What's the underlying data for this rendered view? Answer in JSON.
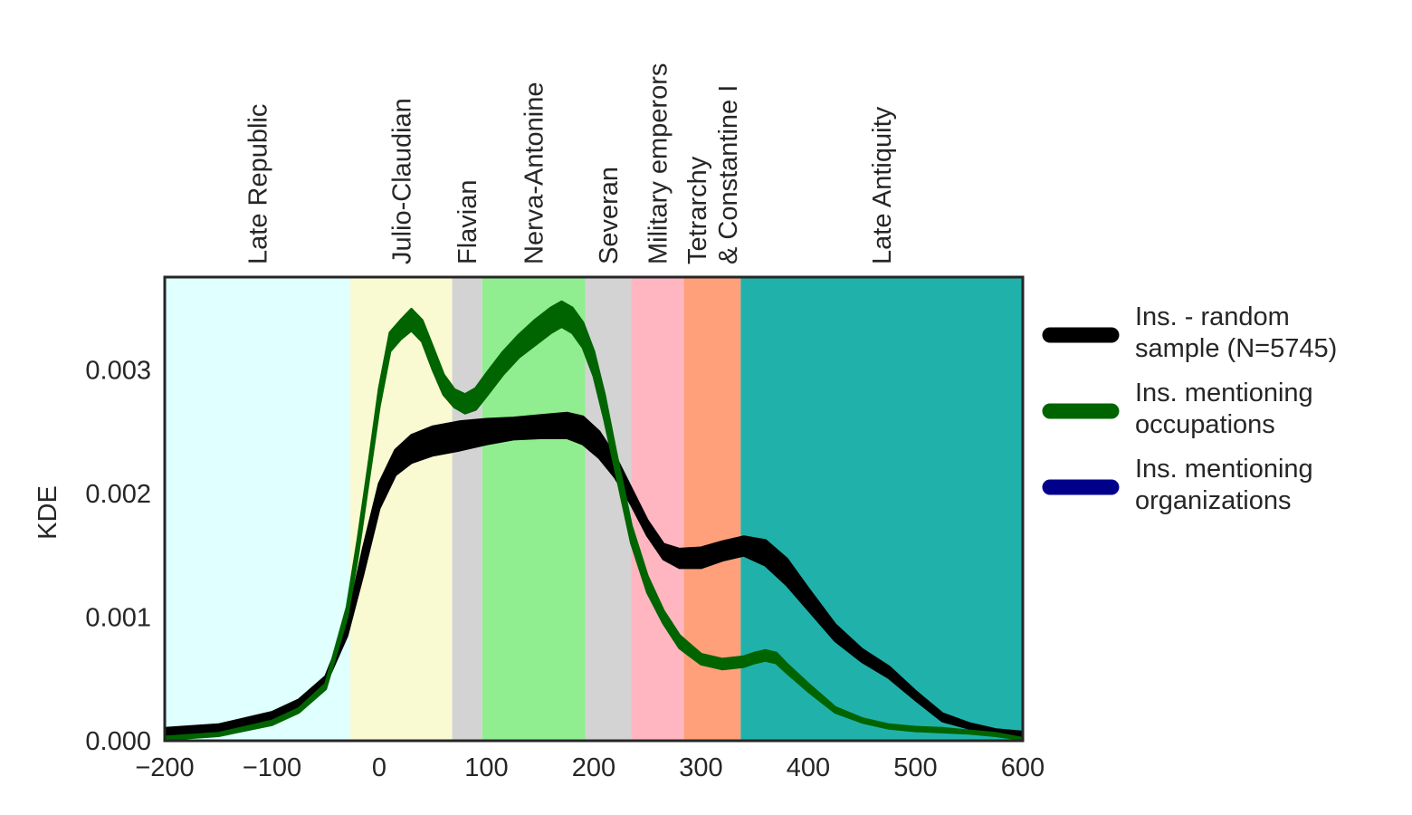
{
  "chart_data": {
    "type": "area",
    "xlabel": "",
    "ylabel": "KDE",
    "xlim": [
      -200,
      600
    ],
    "ylim": [
      0,
      0.00375
    ],
    "x_ticks": [
      -200,
      -100,
      0,
      100,
      200,
      300,
      400,
      500,
      600
    ],
    "x_tick_labels": [
      "−200",
      "−100",
      "0",
      "100",
      "200",
      "300",
      "400",
      "500",
      "600"
    ],
    "y_ticks": [
      0,
      0.001,
      0.002,
      0.003
    ],
    "y_tick_labels": [
      "0.000",
      "0.001",
      "0.002",
      "0.003"
    ],
    "grid": false,
    "legend_position": "right",
    "periods": [
      {
        "name": "Late Republic",
        "lines": [
          "Late Republic"
        ],
        "start": -200,
        "end": -27,
        "color": "#e0ffff"
      },
      {
        "name": "Julio-Claudian",
        "lines": [
          "Julio-Claudian"
        ],
        "start": -27,
        "end": 68,
        "color": "#fafad2"
      },
      {
        "name": "Flavian",
        "lines": [
          "Flavian"
        ],
        "start": 68,
        "end": 96,
        "color": "#d3d3d3"
      },
      {
        "name": "Nerva-Antonine",
        "lines": [
          "Nerva-Antonine"
        ],
        "start": 96,
        "end": 192,
        "color": "#90ee90"
      },
      {
        "name": "Severan",
        "lines": [
          "Severan"
        ],
        "start": 192,
        "end": 235,
        "color": "#d3d3d3"
      },
      {
        "name": "Military emperors",
        "lines": [
          "Military emperors"
        ],
        "start": 235,
        "end": 284,
        "color": "#ffb6c1"
      },
      {
        "name": "Tetrarchy & Constantine I",
        "lines": [
          "Tetrarchy",
          "& Constantine I"
        ],
        "start": 284,
        "end": 337,
        "color": "#ffa07a"
      },
      {
        "name": "Late Antiquity",
        "lines": [
          "Late Antiquity"
        ],
        "start": 337,
        "end": 600,
        "color": "#20b2aa"
      }
    ],
    "series": [
      {
        "name": "Ins. - random sample (N=5745)",
        "legend_lines": [
          "Ins. - random",
          "sample (N=5745)"
        ],
        "color": "#000000",
        "x": [
          -200,
          -150,
          -100,
          -75,
          -50,
          -30,
          -15,
          0,
          15,
          30,
          50,
          75,
          100,
          125,
          150,
          175,
          190,
          205,
          220,
          235,
          250,
          265,
          280,
          300,
          320,
          340,
          360,
          380,
          400,
          425,
          450,
          475,
          500,
          525,
          550,
          575,
          600
        ],
        "lower": [
          5e-05,
          7e-05,
          0.00017,
          0.00027,
          0.00046,
          0.00085,
          0.00135,
          0.00188,
          0.00215,
          0.00225,
          0.00231,
          0.00235,
          0.0024,
          0.00244,
          0.00245,
          0.00245,
          0.0024,
          0.00229,
          0.00213,
          0.00191,
          0.00166,
          0.00147,
          0.0014,
          0.0014,
          0.00146,
          0.0015,
          0.00142,
          0.00126,
          0.00106,
          0.00081,
          0.00064,
          0.00051,
          0.00033,
          0.00016,
          0.0001,
          6e-05,
          4e-05
        ],
        "upper": [
          0.0001,
          0.00013,
          0.00023,
          0.00033,
          0.00052,
          0.00095,
          0.00155,
          0.00208,
          0.00235,
          0.00247,
          0.00254,
          0.00258,
          0.0026,
          0.00261,
          0.00263,
          0.00265,
          0.00262,
          0.0025,
          0.0023,
          0.00204,
          0.00178,
          0.00159,
          0.00155,
          0.00156,
          0.00161,
          0.00165,
          0.00162,
          0.00147,
          0.00123,
          0.00094,
          0.00074,
          0.0006,
          0.0004,
          0.00022,
          0.00014,
          9e-05,
          7e-05
        ]
      },
      {
        "name": "Ins. mentioning occupations",
        "legend_lines": [
          "Ins. mentioning",
          "occupations"
        ],
        "color": "#006400",
        "x": [
          -200,
          -150,
          -100,
          -75,
          -50,
          -30,
          -20,
          -10,
          0,
          10,
          20,
          30,
          40,
          50,
          60,
          70,
          80,
          90,
          100,
          115,
          130,
          145,
          160,
          170,
          180,
          190,
          200,
          210,
          220,
          235,
          250,
          265,
          280,
          300,
          320,
          340,
          350,
          360,
          370,
          380,
          400,
          425,
          450,
          475,
          500,
          525,
          550,
          575,
          600
        ],
        "lower": [
          1e-05,
          4e-05,
          0.00013,
          0.00023,
          0.00042,
          0.001,
          0.0015,
          0.0021,
          0.0027,
          0.00315,
          0.00325,
          0.00332,
          0.00323,
          0.003,
          0.0028,
          0.0027,
          0.00265,
          0.00268,
          0.00279,
          0.00296,
          0.0031,
          0.0032,
          0.0033,
          0.00335,
          0.0033,
          0.00318,
          0.00295,
          0.0026,
          0.0022,
          0.0016,
          0.0012,
          0.00095,
          0.00075,
          0.00062,
          0.00058,
          0.0006,
          0.00063,
          0.00065,
          0.00063,
          0.00055,
          0.0004,
          0.00023,
          0.00015,
          0.0001,
          8e-05,
          7e-05,
          6e-05,
          4e-05,
          1e-05
        ],
        "upper": [
          3e-05,
          6e-05,
          0.00016,
          0.00026,
          0.00046,
          0.00108,
          0.00162,
          0.00222,
          0.00285,
          0.0033,
          0.0034,
          0.00349,
          0.0034,
          0.00318,
          0.00296,
          0.00284,
          0.0028,
          0.00285,
          0.00297,
          0.00314,
          0.00328,
          0.0034,
          0.0035,
          0.00355,
          0.0035,
          0.00338,
          0.00315,
          0.0028,
          0.00236,
          0.00174,
          0.00133,
          0.00105,
          0.00085,
          0.0007,
          0.00066,
          0.00068,
          0.00071,
          0.00073,
          0.00071,
          0.00062,
          0.00046,
          0.00027,
          0.00018,
          0.00013,
          0.00011,
          0.0001,
          8e-05,
          6e-05,
          2e-05
        ]
      },
      {
        "name": "Ins. mentioning organizations",
        "legend_lines": [
          "Ins. mentioning",
          "organizations"
        ],
        "color": "#00008b",
        "x": [],
        "lower": [],
        "upper": []
      }
    ]
  }
}
